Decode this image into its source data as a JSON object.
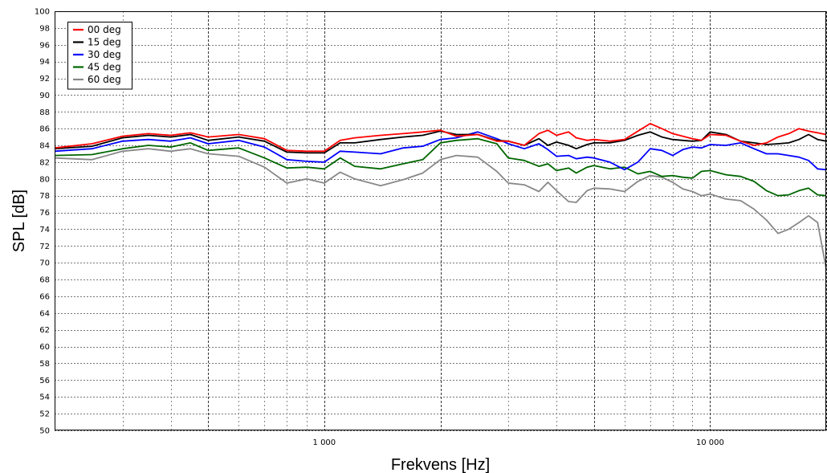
{
  "chart_data": {
    "type": "line",
    "title": "",
    "xlabel": "Frekvens [Hz]",
    "ylabel": "SPL [dB]",
    "x_scale": "log",
    "xlim": [
      200,
      20000
    ],
    "ylim": [
      50,
      100
    ],
    "grid": true,
    "legend_position": "top-left",
    "x_tick_labels": [
      {
        "value": 1000,
        "label": "1 000"
      },
      {
        "value": 10000,
        "label": "10 000"
      }
    ],
    "y_ticks": [
      50,
      52,
      54,
      56,
      58,
      60,
      62,
      64,
      66,
      68,
      70,
      72,
      74,
      76,
      78,
      80,
      82,
      84,
      86,
      88,
      90,
      92,
      94,
      96,
      98,
      100
    ],
    "x": [
      200,
      250,
      300,
      350,
      400,
      450,
      500,
      600,
      700,
      800,
      900,
      1000,
      1100,
      1200,
      1400,
      1600,
      1800,
      2000,
      2200,
      2500,
      2800,
      3000,
      3300,
      3600,
      3800,
      4000,
      4300,
      4500,
      4800,
      5000,
      5500,
      6000,
      6500,
      7000,
      7500,
      8000,
      8500,
      9000,
      9500,
      10000,
      11000,
      12000,
      13000,
      14000,
      15000,
      16000,
      17000,
      18000,
      19000,
      20000
    ],
    "series": [
      {
        "name": "00 deg",
        "color": "#ff0000",
        "values": [
          83.7,
          84.2,
          85.1,
          85.4,
          85.2,
          85.5,
          85.0,
          85.3,
          84.8,
          83.4,
          83.3,
          83.3,
          84.6,
          84.9,
          85.2,
          85.4,
          85.6,
          85.8,
          85.1,
          85.3,
          84.5,
          84.5,
          84.0,
          85.4,
          85.8,
          85.2,
          85.6,
          84.9,
          84.6,
          84.7,
          84.5,
          84.7,
          85.7,
          86.6,
          86.0,
          85.4,
          85.1,
          84.8,
          84.6,
          85.3,
          85.2,
          84.5,
          84.0,
          84.3,
          85.0,
          85.4,
          86.0,
          85.7,
          85.5,
          85.3
        ]
      },
      {
        "name": "15 deg",
        "color": "#000000",
        "values": [
          83.6,
          83.9,
          84.9,
          85.2,
          85.0,
          85.3,
          84.6,
          85.0,
          84.5,
          83.2,
          83.1,
          83.1,
          84.3,
          84.3,
          84.7,
          85.0,
          85.2,
          85.7,
          85.3,
          85.3,
          84.6,
          84.5,
          84.0,
          84.8,
          84.0,
          84.4,
          84.0,
          83.6,
          84.1,
          84.3,
          84.3,
          84.6,
          85.2,
          85.6,
          85.0,
          84.7,
          84.6,
          84.5,
          84.6,
          85.6,
          85.3,
          84.5,
          84.3,
          84.1,
          84.2,
          84.3,
          84.7,
          85.3,
          84.7,
          84.5
        ]
      },
      {
        "name": "30 deg",
        "color": "#0000ff",
        "values": [
          83.3,
          83.6,
          84.5,
          84.7,
          84.5,
          84.9,
          84.2,
          84.6,
          83.8,
          82.3,
          82.1,
          82.0,
          83.3,
          83.2,
          83.0,
          83.7,
          83.9,
          84.7,
          84.9,
          85.6,
          84.8,
          84.2,
          83.6,
          84.2,
          83.5,
          82.7,
          82.8,
          82.4,
          82.6,
          82.5,
          82.0,
          81.1,
          82.0,
          83.6,
          83.4,
          82.8,
          83.5,
          83.8,
          83.7,
          84.1,
          84.0,
          84.3,
          83.6,
          83.0,
          83.0,
          82.8,
          82.6,
          82.2,
          81.2,
          81.1
        ]
      },
      {
        "name": "45 deg",
        "color": "#006600",
        "values": [
          82.8,
          82.9,
          83.6,
          84.0,
          83.8,
          84.3,
          83.4,
          83.7,
          82.5,
          81.3,
          81.4,
          81.2,
          82.5,
          81.5,
          81.2,
          81.8,
          82.3,
          84.3,
          84.6,
          84.8,
          84.2,
          82.5,
          82.2,
          81.5,
          81.8,
          81.0,
          81.3,
          80.7,
          81.4,
          81.6,
          81.2,
          81.4,
          80.6,
          80.9,
          80.3,
          80.4,
          80.2,
          80.1,
          80.9,
          81.0,
          80.5,
          80.3,
          79.7,
          78.6,
          78.0,
          78.1,
          78.6,
          78.9,
          78.1,
          78.0
        ]
      },
      {
        "name": "60 deg",
        "color": "#888888",
        "values": [
          82.5,
          82.3,
          83.3,
          83.6,
          83.3,
          83.6,
          83.0,
          82.7,
          81.4,
          79.5,
          80.0,
          79.5,
          80.8,
          80.0,
          79.2,
          79.9,
          80.7,
          82.3,
          82.8,
          82.6,
          80.9,
          79.5,
          79.3,
          78.5,
          79.6,
          78.6,
          77.3,
          77.2,
          78.6,
          78.9,
          78.8,
          78.5,
          79.7,
          80.4,
          80.2,
          79.6,
          78.8,
          78.5,
          78.0,
          78.2,
          77.6,
          77.4,
          76.4,
          75.1,
          73.5,
          74.0,
          74.8,
          75.6,
          74.8,
          69.3
        ]
      }
    ]
  }
}
